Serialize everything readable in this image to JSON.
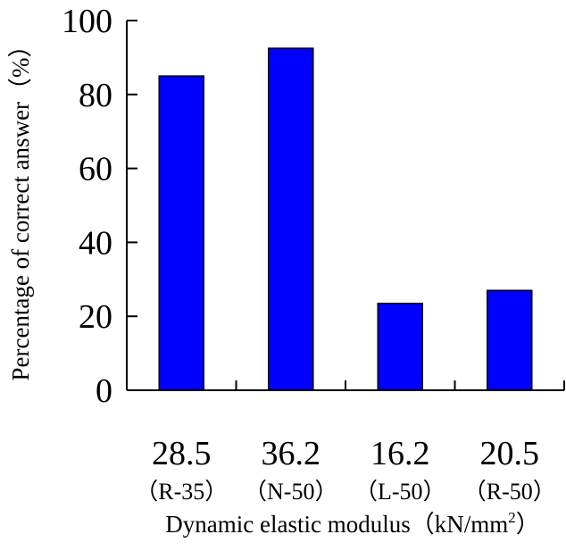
{
  "chart_data": {
    "type": "bar",
    "categories": [
      "28.5",
      "36.2",
      "16.2",
      "20.5"
    ],
    "category_sublabels": [
      "（R-35）",
      "（N-50）",
      "（L-50）",
      "（R-50）"
    ],
    "values": [
      85,
      92.5,
      23.5,
      27
    ],
    "ylim": [
      0,
      100
    ],
    "yticks": [
      0,
      20,
      40,
      60,
      80,
      100
    ],
    "ylabel": "Percentage of correct answer（%）",
    "xlabel": "Dynamic elastic modulus（kN/mm",
    "xlabel_superscript": "2",
    "xlabel_suffix": "）",
    "bar_color": "#0000FF",
    "grid": false,
    "legend": "none"
  }
}
